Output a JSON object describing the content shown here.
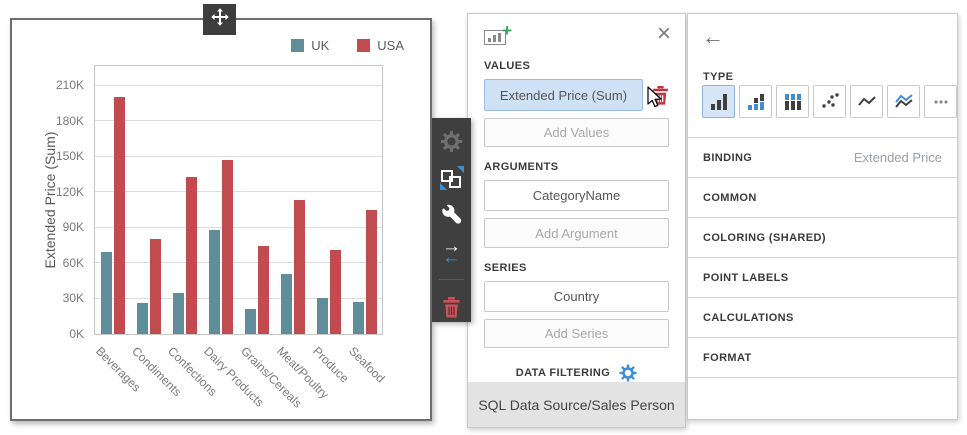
{
  "chart_widget": {
    "chart_data": {
      "type": "bar",
      "title": "",
      "categories": [
        "Beverages",
        "Condiments",
        "Confections",
        "Dairy Products",
        "Grains/Cereals",
        "Meat/Poultry",
        "Produce",
        "Seafood"
      ],
      "series": [
        {
          "name": "UK",
          "color": "#5f8d9a",
          "values": [
            69000,
            26000,
            35000,
            88000,
            21000,
            51000,
            30000,
            27000
          ]
        },
        {
          "name": "USA",
          "color": "#c04c4f",
          "values": [
            200000,
            80000,
            133000,
            147000,
            74000,
            113000,
            71000,
            105000
          ]
        }
      ],
      "xlabel": "",
      "ylabel": "Extended Price (Sum)",
      "yticks": [
        "0K",
        "30K",
        "60K",
        "90K",
        "120K",
        "150K",
        "180K",
        "210K"
      ],
      "ytick_values": [
        0,
        30000,
        60000,
        90000,
        120000,
        150000,
        180000,
        210000
      ],
      "ylim": [
        0,
        228000
      ],
      "grid": true,
      "legend_position": "top-right",
      "x_label_rotation": 45
    },
    "icons": [
      "move-icon"
    ]
  },
  "toolbar": {
    "icons": [
      "settings-gear-icon",
      "convert-widget-icon",
      "wrench-icon",
      "swap-arguments-icon",
      "delete-trash-icon"
    ]
  },
  "binding_panel": {
    "header_icon": "chart-add-icon",
    "close_label": "×",
    "values_header": "VALUES",
    "value_item": "Extended Price (Sum)",
    "add_values_label": "Add Values",
    "arguments_header": "ARGUMENTS",
    "argument_item": "CategoryName",
    "add_argument_label": "Add Argument",
    "series_header": "SERIES",
    "series_item": "Country",
    "add_series_label": "Add Series",
    "data_filtering_label": "DATA FILTERING",
    "footer_label": "SQL Data Source/Sales Person"
  },
  "options_panel": {
    "back_label": "←",
    "type_header": "TYPE",
    "type_options": [
      "bar",
      "stacked-bar",
      "full-stacked-bar",
      "point",
      "line",
      "stacked-line",
      "more"
    ],
    "selected_type": "bar",
    "sections": [
      {
        "label": "BINDING",
        "value": "Extended Price"
      },
      {
        "label": "COMMON",
        "value": ""
      },
      {
        "label": "COLORING (SHARED)",
        "value": ""
      },
      {
        "label": "POINT LABELS",
        "value": ""
      },
      {
        "label": "CALCULATIONS",
        "value": ""
      },
      {
        "label": "FORMAT",
        "value": ""
      }
    ]
  },
  "colors": {
    "uk_series": "#5f8d9a",
    "usa_series": "#c04c4f",
    "accent_blue": "#3e8ed0",
    "selected_fill": "#cfe1f5",
    "toolbar_bg": "#3f3f3f",
    "trash_red": "#c5303e",
    "footer_bg": "#e3e3e3"
  }
}
